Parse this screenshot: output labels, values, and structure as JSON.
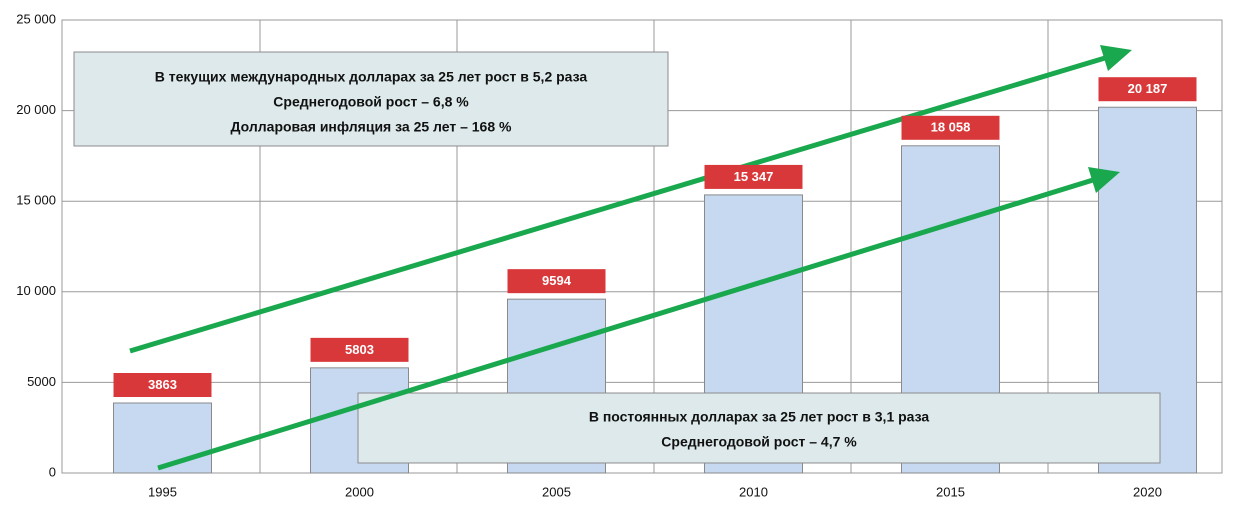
{
  "chart_data": {
    "type": "bar",
    "categories": [
      "1995",
      "2000",
      "2005",
      "2010",
      "2015",
      "2020"
    ],
    "values": [
      3863,
      5803,
      9594,
      15347,
      18058,
      20187
    ],
    "value_labels": [
      "3863",
      "5803",
      "9594",
      "15 347",
      "18 058",
      "20 187"
    ],
    "color": "#c6d9f1",
    "label_color": "#d9383a",
    "ylim": [
      0,
      25000
    ],
    "yticks": [
      0,
      5000,
      {
        "value": 10000,
        "label": "10 000"
      },
      {
        "value": 15000,
        "label": "15 000"
      },
      {
        "value": 20000,
        "label": "20 000"
      },
      {
        "value": 25000,
        "label": "25 000"
      }
    ],
    "grid": true,
    "annotations": [
      [
        "В текущих международных долларах за 25 лет рост в 5,2 раза",
        "Среднегодовой рост – 6,8 %",
        "Долларовая инфляция за 25 лет – 168 %"
      ],
      [
        "В постоянных долларах за 25 лет рост в 3,1 раза",
        "Среднегодовой рост – 4,7 %"
      ]
    ]
  }
}
